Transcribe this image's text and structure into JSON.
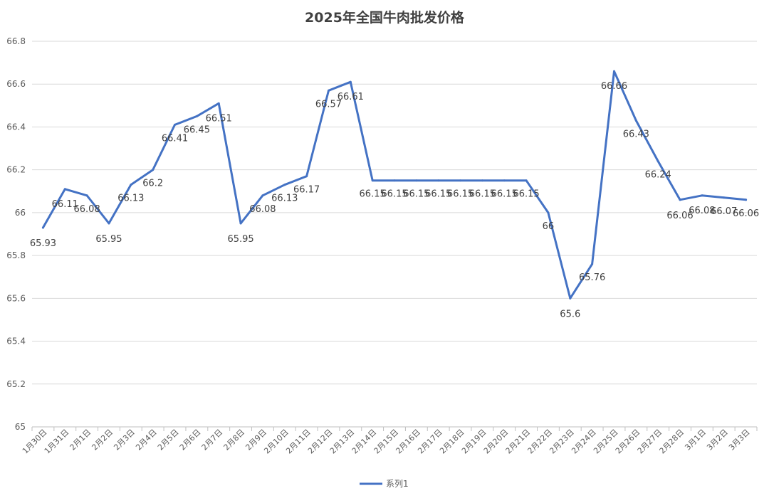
{
  "chart_data": {
    "type": "line",
    "title": "2025年全国牛肉批发价格",
    "xlabel": "",
    "ylabel": "",
    "ylim": [
      65,
      66.8
    ],
    "yticks": [
      65,
      65.2,
      65.4,
      65.6,
      65.8,
      66,
      66.2,
      66.4,
      66.6,
      66.8
    ],
    "ytick_labels": [
      "65",
      "65.2",
      "65.4",
      "65.6",
      "65.8",
      "66",
      "66.2",
      "66.4",
      "66.6",
      "66.8"
    ],
    "grid": true,
    "legend_position": "bottom",
    "categories": [
      "1月30日",
      "1月31日",
      "2月1日",
      "2月2日",
      "2月3日",
      "2月4日",
      "2月5日",
      "2月6日",
      "2月7日",
      "2月8日",
      "2月9日",
      "2月10日",
      "2月11日",
      "2月12日",
      "2月13日",
      "2月14日",
      "2月15日",
      "2月16日",
      "2月17日",
      "2月18日",
      "2月19日",
      "2月20日",
      "2月21日",
      "2月22日",
      "2月23日",
      "2月24日",
      "2月25日",
      "2月26日",
      "2月27日",
      "2月28日",
      "3月1日",
      "3月2日",
      "3月3日"
    ],
    "series": [
      {
        "name": "系列1",
        "color": "#4472c4",
        "values": [
          65.93,
          66.11,
          66.08,
          65.95,
          66.13,
          66.2,
          66.41,
          66.45,
          66.51,
          65.95,
          66.08,
          66.13,
          66.17,
          66.57,
          66.61,
          66.15,
          66.15,
          66.15,
          66.15,
          66.15,
          66.15,
          66.15,
          66.15,
          66,
          65.6,
          65.76,
          66.66,
          66.43,
          66.24,
          66.06,
          66.08,
          66.07,
          66.06
        ],
        "labels": [
          "65.93",
          "66.11",
          "66.08",
          "65.95",
          "66.13",
          "66.2",
          "66.41",
          "66.45",
          "66.51",
          "65.95",
          "66.08",
          "66.13",
          "66.17",
          "66.57",
          "66.61",
          "66.15",
          "66.15",
          "66.15",
          "66.15",
          "66.15",
          "66.15",
          "66.15",
          "66.15",
          "66",
          "65.6",
          "65.76",
          "66.66",
          "66.43",
          "66.24",
          "66.06",
          "66.08",
          "66.07",
          "66.06"
        ]
      }
    ]
  }
}
